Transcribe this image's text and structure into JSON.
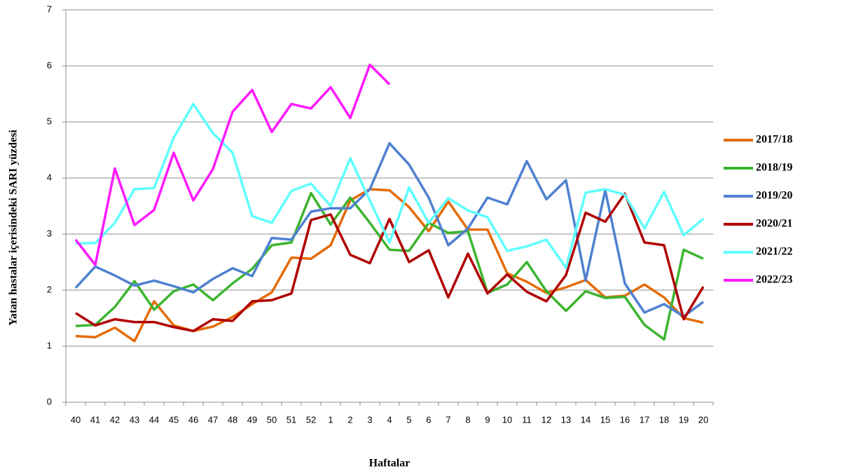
{
  "chart_data": {
    "type": "line",
    "x_label": "Haftalar",
    "y_label": "Yatan  hastalar içerisindeki  SARI yüzdesi",
    "categories": [
      "40",
      "41",
      "42",
      "43",
      "44",
      "45",
      "46",
      "47",
      "48",
      "49",
      "50",
      "51",
      "52",
      "1",
      "2",
      "3",
      "4",
      "5",
      "6",
      "7",
      "8",
      "9",
      "10",
      "11",
      "12",
      "13",
      "14",
      "15",
      "16",
      "17",
      "18",
      "19",
      "20"
    ],
    "ylim": [
      0,
      7
    ],
    "yticks": [
      0,
      1,
      2,
      3,
      4,
      5,
      6,
      7
    ],
    "grid": true,
    "legend": "right",
    "series": [
      {
        "name": "2017/18",
        "color": "#e46c0a",
        "values": [
          1.18,
          1.16,
          1.33,
          1.09,
          1.8,
          1.37,
          1.27,
          1.35,
          1.52,
          1.75,
          1.96,
          2.58,
          2.56,
          2.8,
          3.6,
          3.8,
          3.78,
          3.48,
          3.05,
          3.58,
          3.08,
          3.08,
          2.3,
          2.15,
          1.95,
          2.05,
          2.18,
          1.87,
          1.9,
          2.1,
          1.87,
          1.5,
          1.42
        ]
      },
      {
        "name": "2018/19",
        "color": "#3cb42f",
        "values": [
          1.36,
          1.38,
          1.7,
          2.16,
          1.65,
          1.98,
          2.1,
          1.82,
          2.12,
          2.38,
          2.8,
          2.85,
          3.73,
          3.17,
          3.65,
          3.2,
          2.72,
          2.7,
          3.2,
          3.02,
          3.05,
          1.95,
          2.1,
          2.5,
          1.98,
          1.63,
          1.98,
          1.86,
          1.88,
          1.38,
          1.12,
          2.72,
          2.56
        ]
      },
      {
        "name": "2019/20",
        "color": "#4f81d0",
        "values": [
          2.04,
          2.42,
          2.26,
          2.08,
          2.17,
          2.07,
          1.96,
          2.2,
          2.39,
          2.25,
          2.93,
          2.9,
          3.4,
          3.46,
          3.46,
          3.8,
          4.62,
          4.24,
          3.65,
          2.8,
          3.1,
          3.65,
          3.53,
          4.3,
          3.62,
          3.96,
          2.17,
          3.78,
          2.12,
          1.6,
          1.75,
          1.53,
          1.79
        ]
      },
      {
        "name": "2020/21",
        "color": "#b00000",
        "values": [
          1.59,
          1.37,
          1.48,
          1.43,
          1.43,
          1.34,
          1.27,
          1.48,
          1.45,
          1.8,
          1.82,
          1.94,
          3.25,
          3.35,
          2.63,
          2.48,
          3.27,
          2.5,
          2.71,
          1.87,
          2.65,
          1.94,
          2.28,
          1.97,
          1.8,
          2.27,
          3.38,
          3.22,
          3.72,
          2.85,
          2.8,
          1.48,
          2.06
        ]
      },
      {
        "name": "2021/22",
        "color": "#5fffff",
        "values": [
          2.83,
          2.84,
          3.2,
          3.8,
          3.82,
          4.72,
          5.32,
          4.8,
          4.45,
          3.32,
          3.2,
          3.77,
          3.9,
          3.5,
          4.35,
          3.6,
          2.85,
          3.83,
          3.2,
          3.64,
          3.42,
          3.3,
          2.7,
          2.78,
          2.9,
          2.4,
          3.74,
          3.8,
          3.7,
          3.1,
          3.75,
          2.98,
          3.27
        ]
      },
      {
        "name": "2022/23",
        "color": "#ff1aff",
        "values": [
          2.9,
          2.45,
          4.17,
          3.16,
          3.43,
          4.45,
          3.6,
          4.16,
          5.18,
          5.57,
          4.82,
          5.32,
          5.24,
          5.62,
          5.07,
          6.02,
          5.67,
          null,
          null,
          null,
          null,
          null,
          null,
          null,
          null,
          null,
          null,
          null,
          null,
          null,
          null,
          null,
          null
        ]
      }
    ]
  }
}
